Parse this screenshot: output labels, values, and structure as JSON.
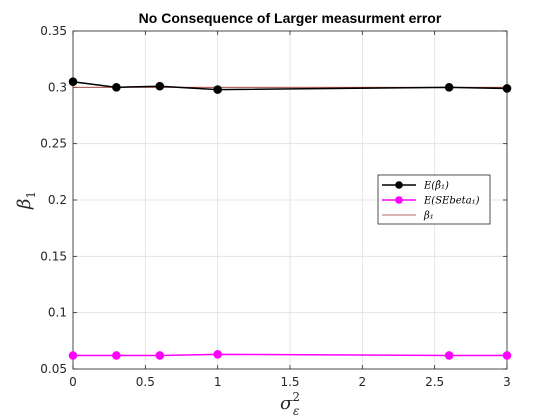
{
  "chart_data": {
    "type": "line",
    "title": "No Consequence of Larger measurment error",
    "xlabel_base": "σ",
    "xlabel_sup": "2",
    "xlabel_sub": "ε",
    "ylabel_base": "β",
    "ylabel_sub": "1",
    "xlim": [
      0,
      3
    ],
    "ylim": [
      0.05,
      0.35
    ],
    "xticks": [
      0,
      0.5,
      1,
      1.5,
      2,
      2.5,
      3
    ],
    "xtick_labels": [
      "0",
      "0.5",
      "1",
      "1.5",
      "2",
      "2.5",
      "3"
    ],
    "yticks": [
      0.05,
      0.1,
      0.15,
      0.2,
      0.25,
      0.3,
      0.35
    ],
    "ytick_labels": [
      "0.05",
      "0.1",
      "0.15",
      "0.2",
      "0.25",
      "0.3",
      "0.35"
    ],
    "grid": true,
    "legend_position": "right",
    "series": [
      {
        "name": "E(β̂₁)",
        "color": "#000000",
        "marker": "circle",
        "x": [
          0,
          0.3,
          0.6,
          1.0,
          2.6,
          3.0
        ],
        "y": [
          0.305,
          0.3,
          0.301,
          0.298,
          0.3,
          0.299
        ]
      },
      {
        "name": "E(SEbeta₁)",
        "color": "#ff00ff",
        "marker": "circle",
        "x": [
          0,
          0.3,
          0.6,
          1.0,
          2.6,
          3.0
        ],
        "y": [
          0.062,
          0.062,
          0.062,
          0.063,
          0.062,
          0.062
        ]
      },
      {
        "name": "β₁",
        "color": "#a0392f",
        "marker": "none",
        "x": [
          0,
          3.0
        ],
        "y": [
          0.3,
          0.3
        ]
      }
    ]
  }
}
